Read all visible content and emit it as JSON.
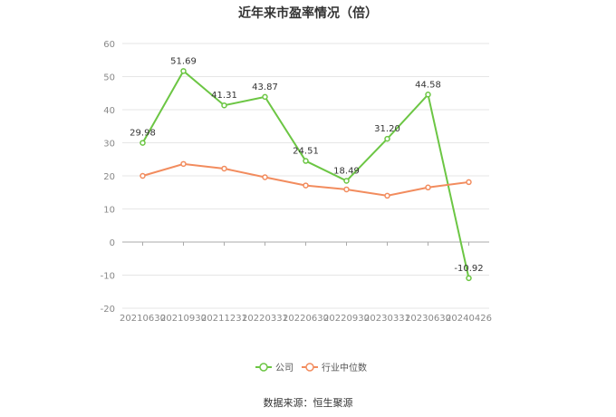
{
  "chart_data": {
    "type": "line",
    "title": "近年来市盈率情况（倍）",
    "categories": [
      "20210630",
      "20210930",
      "20211231",
      "20220331",
      "20220630",
      "20220930",
      "20230331",
      "20230630",
      "20240426"
    ],
    "series": [
      {
        "name": "公司",
        "color": "#6cc644",
        "values": [
          29.98,
          51.69,
          41.31,
          43.87,
          24.51,
          18.49,
          31.2,
          44.58,
          -10.92
        ],
        "labels": [
          "29.98",
          "51.69",
          "41.31",
          "43.87",
          "24.51",
          "18.49",
          "31.20",
          "44.58",
          "-10.92"
        ]
      },
      {
        "name": "行业中位数",
        "color": "#f28c5e",
        "values": [
          20.0,
          23.6,
          22.2,
          19.6,
          17.1,
          15.9,
          14.0,
          16.5,
          18.1
        ]
      }
    ],
    "ylim": [
      -20,
      60
    ],
    "yticks": [
      "60",
      "50",
      "40",
      "30",
      "20",
      "10",
      "0",
      "-10",
      "-20"
    ],
    "grid": true,
    "legend_position": "bottom"
  },
  "source_note": "数据来源：恒生聚源"
}
